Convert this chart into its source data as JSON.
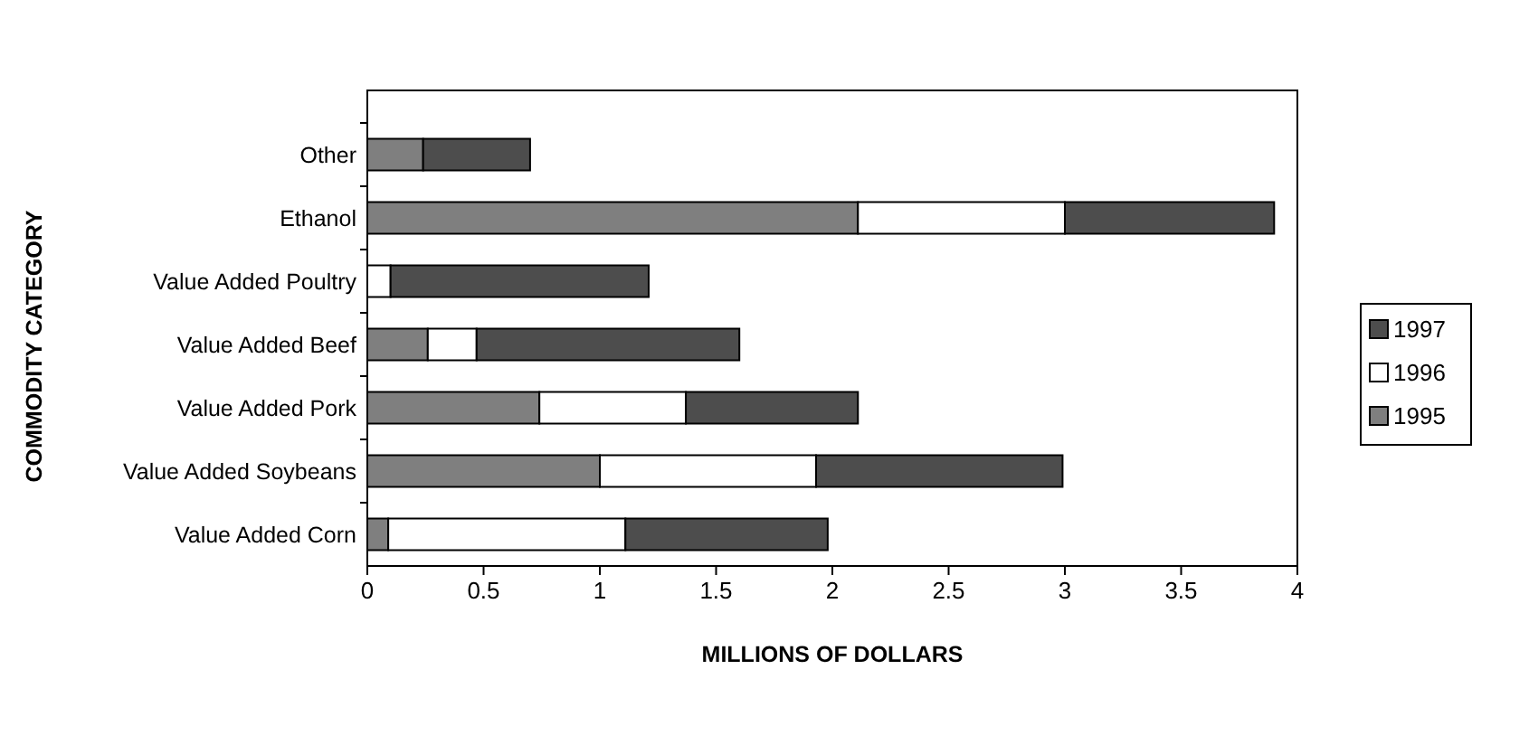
{
  "chart_data": {
    "type": "bar",
    "orientation": "horizontal",
    "stacked": true,
    "xlabel": "MILLIONS OF DOLLARS",
    "ylabel": "COMMODITY CATEGORY",
    "categories": [
      "Other",
      "Ethanol",
      "Value Added Poultry",
      "Value Added Beef",
      "Value Added Pork",
      "Value Added Soybeans",
      "Value Added Corn"
    ],
    "series": [
      {
        "name": "1995",
        "color": "#7f7f7f",
        "values": [
          0.24,
          2.11,
          0,
          0.26,
          0.74,
          1.0,
          0.09
        ]
      },
      {
        "name": "1996",
        "color": "#ffffff",
        "values": [
          0,
          0.89,
          0.1,
          0.21,
          0.63,
          0.93,
          1.02
        ]
      },
      {
        "name": "1997",
        "color": "#4d4d4d",
        "values": [
          0.46,
          0.9,
          1.11,
          1.13,
          0.74,
          1.06,
          0.87
        ]
      }
    ],
    "xlim": [
      0,
      4
    ],
    "xticks": [
      0,
      0.5,
      1,
      1.5,
      2,
      2.5,
      3,
      3.5,
      4
    ],
    "legend": "right"
  }
}
